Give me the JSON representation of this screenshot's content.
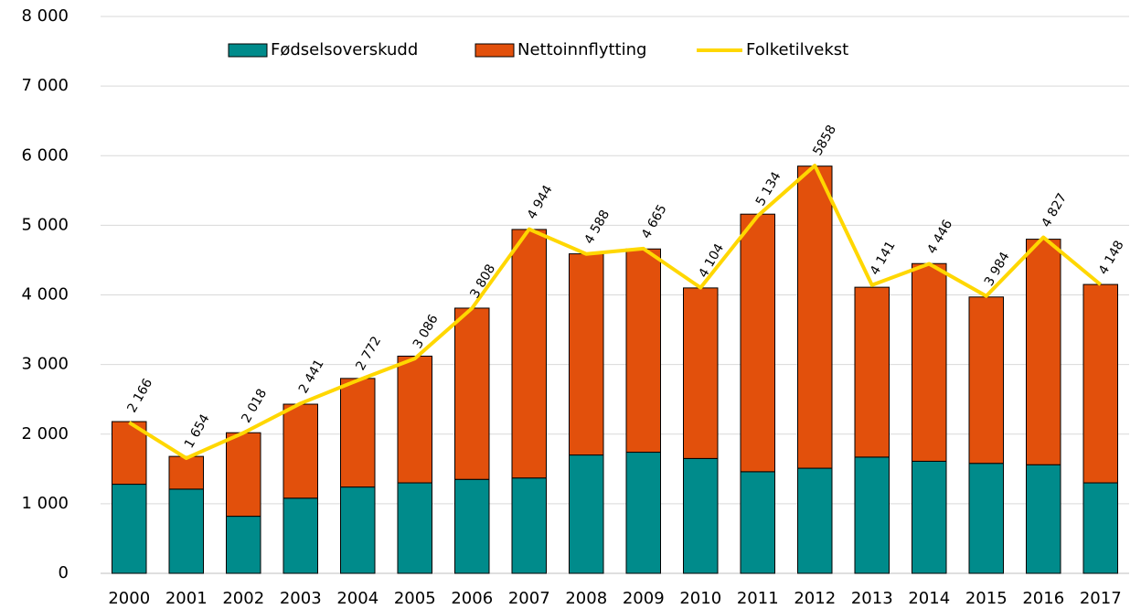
{
  "chart_data": {
    "type": "bar-line",
    "categories": [
      "2000",
      "2001",
      "2002",
      "2003",
      "2004",
      "2005",
      "2006",
      "2007",
      "2008",
      "2009",
      "2010",
      "2011",
      "2012",
      "2013",
      "2014",
      "2015",
      "2016",
      "2017"
    ],
    "series": [
      {
        "name": "Fødselsoverskudd",
        "type": "bar",
        "color": "#008b8b",
        "values": [
          1280,
          1210,
          820,
          1080,
          1240,
          1300,
          1350,
          1370,
          1700,
          1740,
          1650,
          1460,
          1510,
          1670,
          1610,
          1580,
          1560,
          1300
        ]
      },
      {
        "name": "Nettoinnflytting",
        "type": "bar",
        "color": "#e2500c",
        "values": [
          900,
          470,
          1200,
          1350,
          1560,
          1820,
          2460,
          3570,
          2890,
          2920,
          2450,
          3700,
          4340,
          2440,
          2840,
          2390,
          3240,
          2850
        ]
      },
      {
        "name": "Folketilvekst",
        "type": "line",
        "color": "#ffd700",
        "values": [
          2166,
          1654,
          2018,
          2441,
          2772,
          3086,
          3808,
          4944,
          4588,
          4665,
          4104,
          5134,
          5858,
          4141,
          4446,
          3984,
          4827,
          4148
        ],
        "value_labels": [
          "2 166",
          "1 654",
          "2 018",
          "2 441",
          "2 772",
          "3 086",
          "3 808",
          "4 944",
          "4 588",
          "4 665",
          "4 104",
          "5 134",
          "5858",
          "4 141",
          "4 446",
          "3 984",
          "4 827",
          "4 148"
        ]
      }
    ],
    "ylim": [
      0,
      8000
    ],
    "yticks": [
      0,
      {
        "value": 1000,
        "label": "1 000"
      },
      {
        "value": 2000,
        "label": "2 000"
      },
      {
        "value": 3000,
        "label": "3 000"
      },
      {
        "value": 4000,
        "label": "4 000"
      },
      {
        "value": 5000,
        "label": "5 000"
      },
      {
        "value": 6000,
        "label": "6 000"
      },
      {
        "value": 7000,
        "label": "7 000"
      },
      {
        "value": 8000,
        "label": "8 000"
      }
    ],
    "grid": true,
    "legend": "top"
  }
}
